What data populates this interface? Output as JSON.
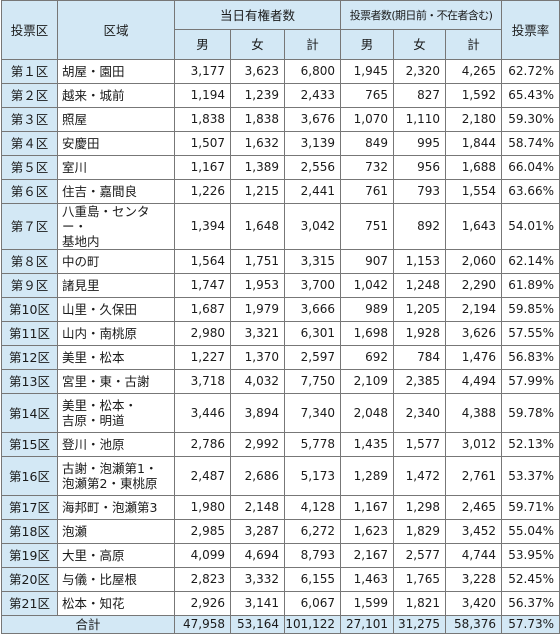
{
  "header": {
    "district": "投票区",
    "area": "区域",
    "eligible_group": "当日有権者数",
    "turnout_group": "投票者数(期日前・不在者含む)",
    "rate": "投票率",
    "male": "男",
    "female": "女",
    "total": "計"
  },
  "rows": [
    {
      "district": "第１区",
      "area": [
        "胡屋・園田"
      ],
      "elig_m": "3,177",
      "elig_f": "3,623",
      "elig_t": "6,800",
      "vote_m": "1,945",
      "vote_f": "2,320",
      "vote_t": "4,265",
      "rate": "62.72%"
    },
    {
      "district": "第２区",
      "area": [
        "越来・城前"
      ],
      "elig_m": "1,194",
      "elig_f": "1,239",
      "elig_t": "2,433",
      "vote_m": "765",
      "vote_f": "827",
      "vote_t": "1,592",
      "rate": "65.43%"
    },
    {
      "district": "第３区",
      "area": [
        "照屋"
      ],
      "elig_m": "1,838",
      "elig_f": "1,838",
      "elig_t": "3,676",
      "vote_m": "1,070",
      "vote_f": "1,110",
      "vote_t": "2,180",
      "rate": "59.30%"
    },
    {
      "district": "第４区",
      "area": [
        "安慶田"
      ],
      "elig_m": "1,507",
      "elig_f": "1,632",
      "elig_t": "3,139",
      "vote_m": "849",
      "vote_f": "995",
      "vote_t": "1,844",
      "rate": "58.74%"
    },
    {
      "district": "第５区",
      "area": [
        "室川"
      ],
      "elig_m": "1,167",
      "elig_f": "1,389",
      "elig_t": "2,556",
      "vote_m": "732",
      "vote_f": "956",
      "vote_t": "1,688",
      "rate": "66.04%"
    },
    {
      "district": "第６区",
      "area": [
        "住吉・嘉間良"
      ],
      "elig_m": "1,226",
      "elig_f": "1,215",
      "elig_t": "2,441",
      "vote_m": "761",
      "vote_f": "793",
      "vote_t": "1,554",
      "rate": "63.66%"
    },
    {
      "district": "第７区",
      "area": [
        "八重島・センター・",
        "基地内"
      ],
      "elig_m": "1,394",
      "elig_f": "1,648",
      "elig_t": "3,042",
      "vote_m": "751",
      "vote_f": "892",
      "vote_t": "1,643",
      "rate": "54.01%"
    },
    {
      "district": "第８区",
      "area": [
        "中の町"
      ],
      "elig_m": "1,564",
      "elig_f": "1,751",
      "elig_t": "3,315",
      "vote_m": "907",
      "vote_f": "1,153",
      "vote_t": "2,060",
      "rate": "62.14%"
    },
    {
      "district": "第９区",
      "area": [
        "諸見里"
      ],
      "elig_m": "1,747",
      "elig_f": "1,953",
      "elig_t": "3,700",
      "vote_m": "1,042",
      "vote_f": "1,248",
      "vote_t": "2,290",
      "rate": "61.89%"
    },
    {
      "district": "第10区",
      "area": [
        "山里・久保田"
      ],
      "elig_m": "1,687",
      "elig_f": "1,979",
      "elig_t": "3,666",
      "vote_m": "989",
      "vote_f": "1,205",
      "vote_t": "2,194",
      "rate": "59.85%"
    },
    {
      "district": "第11区",
      "area": [
        "山内・南桃原"
      ],
      "elig_m": "2,980",
      "elig_f": "3,321",
      "elig_t": "6,301",
      "vote_m": "1,698",
      "vote_f": "1,928",
      "vote_t": "3,626",
      "rate": "57.55%"
    },
    {
      "district": "第12区",
      "area": [
        "美里・松本"
      ],
      "elig_m": "1,227",
      "elig_f": "1,370",
      "elig_t": "2,597",
      "vote_m": "692",
      "vote_f": "784",
      "vote_t": "1,476",
      "rate": "56.83%"
    },
    {
      "district": "第13区",
      "area": [
        "宮里・東・古謝"
      ],
      "elig_m": "3,718",
      "elig_f": "4,032",
      "elig_t": "7,750",
      "vote_m": "2,109",
      "vote_f": "2,385",
      "vote_t": "4,494",
      "rate": "57.99%"
    },
    {
      "district": "第14区",
      "area": [
        "美里・松本・",
        "吉原・明道"
      ],
      "elig_m": "3,446",
      "elig_f": "3,894",
      "elig_t": "7,340",
      "vote_m": "2,048",
      "vote_f": "2,340",
      "vote_t": "4,388",
      "rate": "59.78%"
    },
    {
      "district": "第15区",
      "area": [
        "登川・池原"
      ],
      "elig_m": "2,786",
      "elig_f": "2,992",
      "elig_t": "5,778",
      "vote_m": "1,435",
      "vote_f": "1,577",
      "vote_t": "3,012",
      "rate": "52.13%"
    },
    {
      "district": "第16区",
      "area": [
        "古謝・泡瀬第1・",
        "泡瀬第2・東桃原"
      ],
      "elig_m": "2,487",
      "elig_f": "2,686",
      "elig_t": "5,173",
      "vote_m": "1,289",
      "vote_f": "1,472",
      "vote_t": "2,761",
      "rate": "53.37%"
    },
    {
      "district": "第17区",
      "area": [
        "海邦町・泡瀬第3"
      ],
      "elig_m": "1,980",
      "elig_f": "2,148",
      "elig_t": "4,128",
      "vote_m": "1,167",
      "vote_f": "1,298",
      "vote_t": "2,465",
      "rate": "59.71%"
    },
    {
      "district": "第18区",
      "area": [
        "泡瀬"
      ],
      "elig_m": "2,985",
      "elig_f": "3,287",
      "elig_t": "6,272",
      "vote_m": "1,623",
      "vote_f": "1,829",
      "vote_t": "3,452",
      "rate": "55.04%"
    },
    {
      "district": "第19区",
      "area": [
        "大里・高原"
      ],
      "elig_m": "4,099",
      "elig_f": "4,694",
      "elig_t": "8,793",
      "vote_m": "2,167",
      "vote_f": "2,577",
      "vote_t": "4,744",
      "rate": "53.95%"
    },
    {
      "district": "第20区",
      "area": [
        "与儀・比屋根"
      ],
      "elig_m": "2,823",
      "elig_f": "3,332",
      "elig_t": "6,155",
      "vote_m": "1,463",
      "vote_f": "1,765",
      "vote_t": "3,228",
      "rate": "52.45%"
    },
    {
      "district": "第21区",
      "area": [
        "松本・知花"
      ],
      "elig_m": "2,926",
      "elig_f": "3,141",
      "elig_t": "6,067",
      "vote_m": "1,599",
      "vote_f": "1,821",
      "vote_t": "3,420",
      "rate": "56.37%"
    }
  ],
  "total": {
    "label": "合計",
    "elig_m": "47,958",
    "elig_f": "53,164",
    "elig_t": "101,122",
    "vote_m": "27,101",
    "vote_f": "31,275",
    "vote_t": "58,376",
    "rate": "57.73%"
  }
}
